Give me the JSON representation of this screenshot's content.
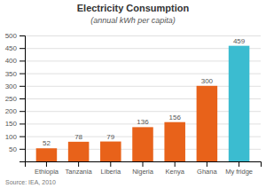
{
  "chart_data": {
    "type": "bar",
    "title": "Electricity Consumption",
    "subtitle": "(annual kWh per capita)",
    "source": "Source: IEA, 2010",
    "categories": [
      "Ethiopia",
      "Tanzania",
      "Liberia",
      "Nigeria",
      "Kenya",
      "Ghana",
      "My fridge"
    ],
    "values": [
      52,
      78,
      79,
      136,
      156,
      300,
      459
    ],
    "colors": [
      "#E8621A",
      "#E8621A",
      "#E8621A",
      "#E8621A",
      "#E8621A",
      "#E8621A",
      "#3BBCD0"
    ],
    "ylim": [
      0,
      500
    ],
    "yticks": [
      {
        "value": 0,
        "label": null
      },
      50,
      100,
      150,
      200,
      250,
      300,
      350,
      400,
      450,
      500
    ],
    "grid": true,
    "data_labels": true
  }
}
